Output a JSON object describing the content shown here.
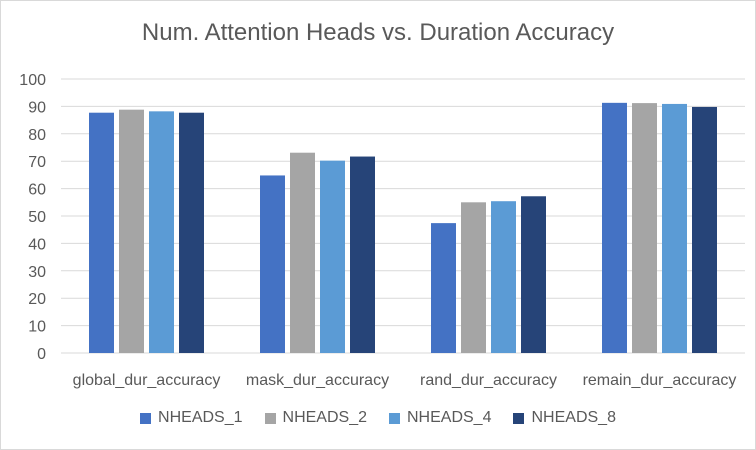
{
  "chart_data": {
    "type": "bar",
    "title": "Num. Attention Heads vs. Duration Accuracy",
    "xlabel": "",
    "ylabel": "",
    "ylim": [
      0,
      100
    ],
    "yticks": [
      0,
      10,
      20,
      30,
      40,
      50,
      60,
      70,
      80,
      90,
      100
    ],
    "grid": true,
    "legend_position": "bottom",
    "categories": [
      "global_dur_accuracy",
      "mask_dur_accuracy",
      "rand_dur_accuracy",
      "remain_dur_accuracy"
    ],
    "series": [
      {
        "name": "NHEADS_1",
        "color": "#4472c4",
        "values": [
          87.7,
          64.8,
          47.4,
          91.3
        ]
      },
      {
        "name": "NHEADS_2",
        "color": "#a5a5a5",
        "values": [
          88.8,
          73.1,
          55.0,
          91.2
        ]
      },
      {
        "name": "NHEADS_4",
        "color": "#5b9bd5",
        "values": [
          88.2,
          70.2,
          55.4,
          90.9
        ]
      },
      {
        "name": "NHEADS_8",
        "color": "#264478",
        "values": [
          87.7,
          71.7,
          57.2,
          89.8
        ]
      }
    ]
  }
}
